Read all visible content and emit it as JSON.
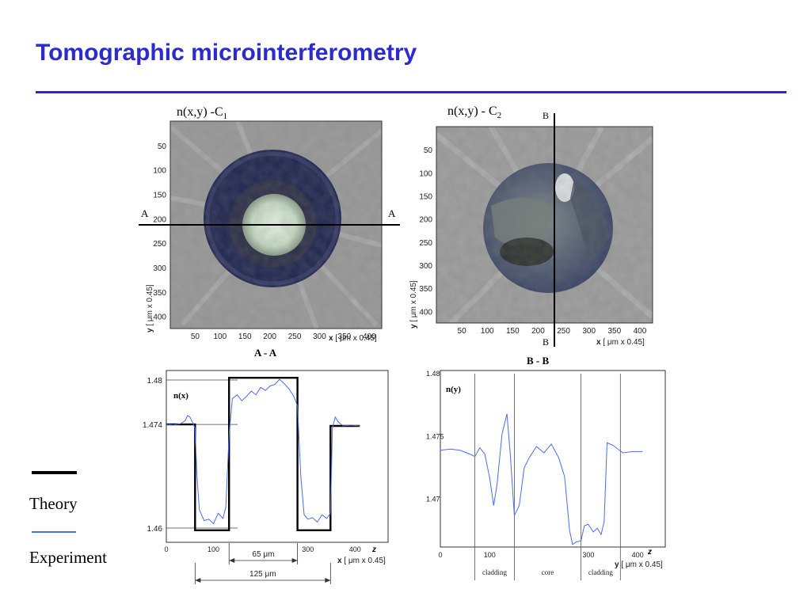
{
  "title": "Tomographic microinterferometry",
  "legend": {
    "items": [
      {
        "label": "Theory",
        "color": "#000000"
      },
      {
        "label": "Experiment",
        "color": "#4a6cf0"
      }
    ]
  },
  "panels": {
    "c1": {
      "caption": "n(x,y) -C",
      "caption_sub": "1",
      "y_ticks": [
        "50",
        "100",
        "150",
        "200",
        "250",
        "300",
        "350",
        "400"
      ],
      "x_ticks": [
        "50",
        "100",
        "150",
        "200",
        "250",
        "300",
        "350",
        "400"
      ],
      "ylabel_var": "y",
      "ylabel_unit": "[ μm x 0.45]",
      "xlabel_var": "x",
      "xlabel_unit": "[ μm x 0.45]",
      "line_label_left": "A",
      "line_label_right": "A",
      "section_label": "A - A"
    },
    "c2": {
      "caption": "n(x,y) - C",
      "caption_sub": "2",
      "y_ticks": [
        "50",
        "100",
        "150",
        "200",
        "250",
        "300",
        "350",
        "400"
      ],
      "x_ticks": [
        "50",
        "100",
        "150",
        "200",
        "250",
        "300",
        "350",
        "400"
      ],
      "ylabel_var": "y",
      "ylabel_unit": "[ μm x 0.45]",
      "xlabel_var": "x",
      "xlabel_unit": "[ μm x 0.45]",
      "line_label_top": "B",
      "line_label_bottom": "B",
      "section_label": "B - B"
    }
  },
  "chart_data": [
    {
      "type": "line",
      "title": "A - A",
      "ylabel": "n(x)",
      "xlabel_var": "x",
      "xlabel_unit": "[ μm x 0.45]",
      "x_end_label": "z",
      "xlim": [
        0,
        470
      ],
      "ylim": [
        1.4575,
        1.4805
      ],
      "y_ticks": [
        {
          "v": 1.48,
          "label": "1.48"
        },
        {
          "v": 1.474,
          "label": "1.474"
        },
        {
          "v": 1.46,
          "label": "1.46"
        }
      ],
      "x_ticks": [
        {
          "v": 0,
          "label": "0"
        },
        {
          "v": 100,
          "label": "100"
        },
        {
          "v": 300,
          "label": "300"
        },
        {
          "v": 400,
          "label": "400"
        }
      ],
      "dimensions": [
        {
          "label": "65 μm",
          "from": 133,
          "to": 278
        },
        {
          "label": "125 μm",
          "from": 61,
          "to": 348
        }
      ],
      "series": [
        {
          "name": "Theory",
          "x": [
            0,
            61,
            61,
            133,
            133,
            278,
            278,
            348,
            348,
            410
          ],
          "y": [
            1.474,
            1.474,
            1.4597,
            1.4597,
            1.4803,
            1.4803,
            1.4597,
            1.4597,
            1.4738,
            1.4738
          ]
        },
        {
          "name": "Experiment",
          "x": [
            0,
            15,
            30,
            40,
            45,
            50,
            56,
            61,
            65,
            70,
            80,
            90,
            100,
            110,
            120,
            126,
            133,
            140,
            150,
            160,
            170,
            180,
            190,
            200,
            210,
            220,
            230,
            240,
            250,
            260,
            270,
            278,
            285,
            292,
            300,
            310,
            320,
            330,
            340,
            348,
            352,
            358,
            365,
            375,
            390,
            410
          ],
          "y": [
            1.474,
            1.4739,
            1.4741,
            1.4745,
            1.4752,
            1.475,
            1.4742,
            1.4735,
            1.467,
            1.4625,
            1.461,
            1.4612,
            1.4606,
            1.462,
            1.4613,
            1.4628,
            1.4725,
            1.4775,
            1.478,
            1.4772,
            1.4778,
            1.4785,
            1.478,
            1.479,
            1.4786,
            1.4792,
            1.4794,
            1.4801,
            1.4795,
            1.4788,
            1.4778,
            1.4765,
            1.467,
            1.4618,
            1.4612,
            1.4614,
            1.4608,
            1.4618,
            1.4613,
            1.462,
            1.4735,
            1.475,
            1.4743,
            1.4738,
            1.4739,
            1.4738
          ]
        }
      ]
    },
    {
      "type": "line",
      "title": "B - B",
      "ylabel": "n(y)",
      "xlabel_var": "y",
      "xlabel_unit": "[ μm x 0.45]",
      "x_end_label": "z",
      "xlim": [
        0,
        456
      ],
      "ylim": [
        1.4662,
        1.48
      ],
      "y_ticks": [
        {
          "v": 1.48,
          "label": "1.48"
        },
        {
          "v": 1.475,
          "label": "1.475"
        },
        {
          "v": 1.47,
          "label": "1.47"
        }
      ],
      "x_ticks": [
        {
          "v": 0,
          "label": "0"
        },
        {
          "v": 100,
          "label": "100"
        },
        {
          "v": 300,
          "label": "300"
        },
        {
          "v": 400,
          "label": "400"
        }
      ],
      "regions": [
        {
          "label": "cladding",
          "from": 70,
          "to": 150
        },
        {
          "label": "core",
          "from": 150,
          "to": 285
        },
        {
          "label": "cladding",
          "from": 285,
          "to": 365
        }
      ],
      "boundaries": [
        70,
        150,
        285,
        365
      ],
      "series": [
        {
          "name": "Experiment",
          "x": [
            0,
            20,
            40,
            60,
            70,
            80,
            90,
            100,
            108,
            115,
            125,
            135,
            142,
            150,
            160,
            170,
            180,
            195,
            210,
            225,
            240,
            252,
            262,
            268,
            275,
            285,
            292,
            300,
            310,
            318,
            326,
            332,
            338,
            350,
            370,
            390,
            410
          ],
          "y": [
            1.4739,
            1.474,
            1.4739,
            1.4736,
            1.4734,
            1.4741,
            1.4736,
            1.4717,
            1.4695,
            1.4712,
            1.4752,
            1.4768,
            1.4735,
            1.4687,
            1.4695,
            1.4725,
            1.4733,
            1.4742,
            1.4737,
            1.4744,
            1.4733,
            1.4718,
            1.4675,
            1.4664,
            1.4666,
            1.4667,
            1.4679,
            1.468,
            1.4674,
            1.4677,
            1.4672,
            1.4682,
            1.4745,
            1.4743,
            1.4737,
            1.4738,
            1.4738
          ]
        }
      ]
    }
  ]
}
